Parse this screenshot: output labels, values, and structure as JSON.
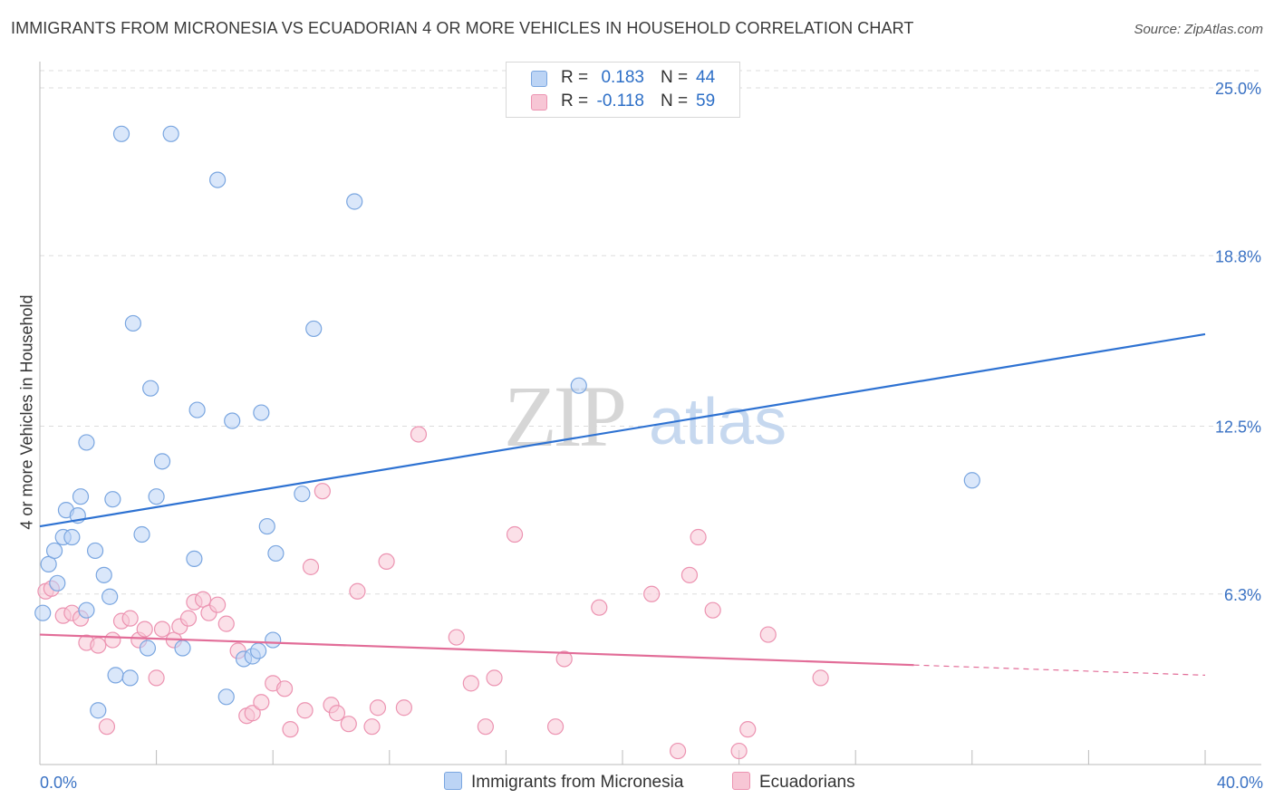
{
  "title": "IMMIGRANTS FROM MICRONESIA VS ECUADORIAN 4 OR MORE VEHICLES IN HOUSEHOLD CORRELATION CHART",
  "source": "Source: ZipAtlas.com",
  "watermark": {
    "zip": "ZIP",
    "atlas": "atlas"
  },
  "legend": {
    "rows": [
      {
        "r_label": "R =",
        "r_value": "0.183",
        "n_label": "N =",
        "n_value": "44"
      },
      {
        "r_label": "R =",
        "r_value": "-0.118",
        "n_label": "N =",
        "n_value": "59"
      }
    ]
  },
  "bottom_legend": [
    "Immigrants from Micronesia",
    "Ecuadorians"
  ],
  "colors": {
    "blue_fill": "#bcd4f5",
    "blue_stroke": "#7aa6e0",
    "blue_line": "#2e72d2",
    "pink_fill": "#f7c6d5",
    "pink_stroke": "#ec93b1",
    "pink_line": "#e26d98",
    "grid": "#dddddd",
    "tick_text": "#3a72c4"
  },
  "chart_data": {
    "type": "scatter",
    "title": "IMMIGRANTS FROM MICRONESIA VS ECUADORIAN 4 OR MORE VEHICLES IN HOUSEHOLD CORRELATION CHART",
    "xlabel": "",
    "ylabel": "4 or more Vehicles in Household",
    "xlim": [
      0,
      40
    ],
    "ylim": [
      0,
      25
    ],
    "x_tick_labels": [
      "0.0%",
      "40.0%"
    ],
    "y_ticks": [
      6.3,
      12.5,
      18.8,
      25.0
    ],
    "y_tick_labels": [
      "6.3%",
      "12.5%",
      "18.8%",
      "25.0%"
    ],
    "grid": true,
    "series": [
      {
        "name": "Immigrants from Micronesia",
        "r": 0.183,
        "n": 44,
        "trend": {
          "x": [
            0,
            40
          ],
          "y": [
            8.8,
            15.9
          ],
          "dashed_from": null
        },
        "points": [
          [
            0.1,
            5.6
          ],
          [
            0.3,
            7.4
          ],
          [
            0.5,
            7.9
          ],
          [
            0.6,
            6.7
          ],
          [
            0.8,
            8.4
          ],
          [
            0.9,
            9.4
          ],
          [
            1.1,
            8.4
          ],
          [
            1.3,
            9.2
          ],
          [
            1.4,
            9.9
          ],
          [
            1.6,
            5.7
          ],
          [
            1.6,
            11.9
          ],
          [
            1.9,
            7.9
          ],
          [
            2.0,
            2.0
          ],
          [
            2.2,
            7.0
          ],
          [
            2.4,
            6.2
          ],
          [
            2.5,
            9.8
          ],
          [
            2.6,
            3.3
          ],
          [
            2.8,
            23.3
          ],
          [
            3.1,
            3.2
          ],
          [
            3.2,
            16.3
          ],
          [
            3.5,
            8.5
          ],
          [
            3.7,
            4.3
          ],
          [
            3.8,
            13.9
          ],
          [
            4.0,
            9.9
          ],
          [
            4.2,
            11.2
          ],
          [
            4.5,
            23.3
          ],
          [
            4.9,
            4.3
          ],
          [
            5.3,
            7.6
          ],
          [
            5.4,
            13.1
          ],
          [
            6.1,
            21.6
          ],
          [
            6.4,
            2.5
          ],
          [
            6.6,
            12.7
          ],
          [
            7.0,
            3.9
          ],
          [
            7.3,
            4.0
          ],
          [
            7.5,
            4.2
          ],
          [
            7.6,
            13.0
          ],
          [
            7.8,
            8.8
          ],
          [
            8.0,
            4.6
          ],
          [
            8.1,
            7.8
          ],
          [
            9.0,
            10.0
          ],
          [
            9.4,
            16.1
          ],
          [
            10.8,
            20.8
          ],
          [
            18.5,
            14.0
          ],
          [
            32.0,
            10.5
          ]
        ]
      },
      {
        "name": "Ecuadorians",
        "r": -0.118,
        "n": 59,
        "trend": {
          "x": [
            0,
            40
          ],
          "y": [
            4.8,
            3.3
          ],
          "dashed_from": 30
        },
        "points": [
          [
            0.2,
            6.4
          ],
          [
            0.4,
            6.5
          ],
          [
            0.8,
            5.5
          ],
          [
            1.1,
            5.6
          ],
          [
            1.4,
            5.4
          ],
          [
            1.6,
            4.5
          ],
          [
            2.0,
            4.4
          ],
          [
            2.3,
            1.4
          ],
          [
            2.5,
            4.6
          ],
          [
            2.8,
            5.3
          ],
          [
            3.1,
            5.4
          ],
          [
            3.4,
            4.6
          ],
          [
            3.6,
            5.0
          ],
          [
            4.0,
            3.2
          ],
          [
            4.2,
            5.0
          ],
          [
            4.6,
            4.6
          ],
          [
            4.8,
            5.1
          ],
          [
            5.1,
            5.4
          ],
          [
            5.3,
            6.0
          ],
          [
            5.6,
            6.1
          ],
          [
            5.8,
            5.6
          ],
          [
            6.1,
            5.9
          ],
          [
            6.4,
            5.2
          ],
          [
            6.8,
            4.2
          ],
          [
            7.1,
            1.8
          ],
          [
            7.3,
            1.9
          ],
          [
            7.6,
            2.3
          ],
          [
            8.0,
            3.0
          ],
          [
            8.4,
            2.8
          ],
          [
            8.6,
            1.3
          ],
          [
            9.1,
            2.0
          ],
          [
            9.3,
            7.3
          ],
          [
            9.7,
            10.1
          ],
          [
            10.0,
            2.2
          ],
          [
            10.2,
            1.9
          ],
          [
            10.6,
            1.5
          ],
          [
            10.9,
            6.4
          ],
          [
            11.4,
            1.4
          ],
          [
            11.6,
            2.1
          ],
          [
            11.9,
            7.5
          ],
          [
            12.5,
            2.1
          ],
          [
            13.0,
            12.2
          ],
          [
            14.3,
            4.7
          ],
          [
            14.8,
            3.0
          ],
          [
            15.3,
            1.4
          ],
          [
            15.6,
            3.2
          ],
          [
            16.3,
            8.5
          ],
          [
            17.7,
            1.4
          ],
          [
            18.0,
            3.9
          ],
          [
            19.2,
            5.8
          ],
          [
            21.0,
            6.3
          ],
          [
            21.9,
            0.5
          ],
          [
            22.3,
            7.0
          ],
          [
            22.6,
            8.4
          ],
          [
            23.1,
            5.7
          ],
          [
            24.0,
            0.5
          ],
          [
            24.3,
            1.3
          ],
          [
            25.0,
            4.8
          ],
          [
            26.8,
            3.2
          ]
        ]
      }
    ]
  }
}
